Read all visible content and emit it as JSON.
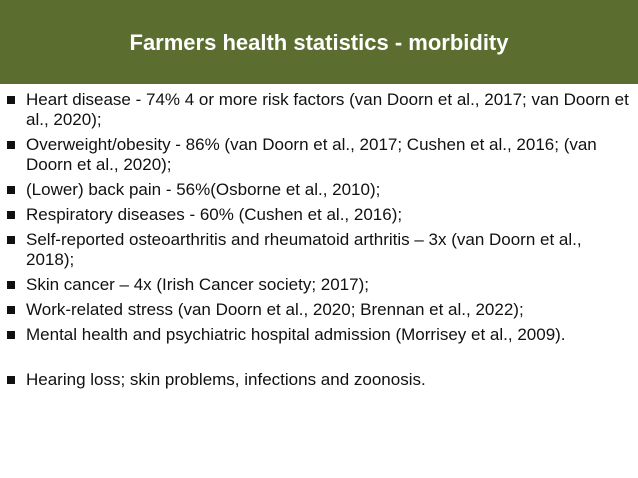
{
  "slide": {
    "title": "Farmers health statistics - morbidity",
    "bullets": [
      "Heart disease - 74% 4 or more risk factors (van Doorn et al., 2017; van Doorn et al., 2020);",
      "Overweight/obesity - 86% (van Doorn et al., 2017; Cushen et al., 2016; (van Doorn et al., 2020);",
      "(Lower) back pain - 56%(Osborne et al., 2010);",
      "Respiratory diseases - 60% (Cushen et al., 2016);",
      "Self-reported osteoarthritis and rheumatoid arthritis – 3x (van Doorn et al., 2018);",
      "Skin cancer – 4x (Irish Cancer society; 2017);",
      "Work-related stress (van Doorn et al., 2020; Brennan et al., 2022);",
      "Mental health and psychiatric hospital admission (Morrisey et al., 2009).",
      "Hearing loss; skin problems, infections and zoonosis."
    ]
  },
  "colors": {
    "title_bar": "#5b6e2f",
    "title_text": "#ffffff",
    "body_text": "#111111"
  }
}
